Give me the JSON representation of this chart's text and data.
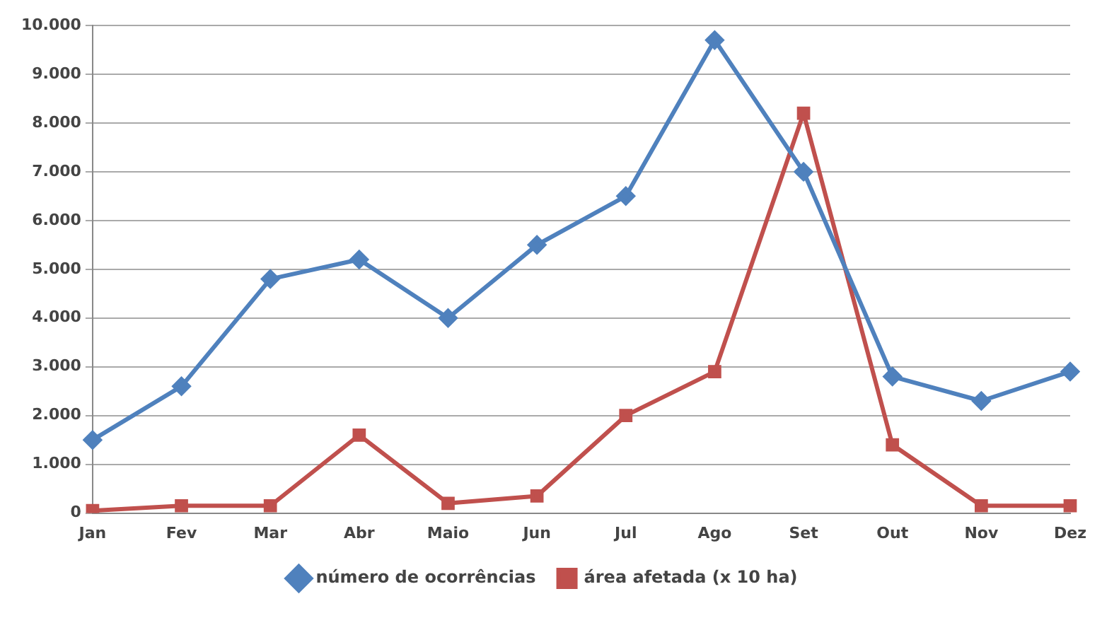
{
  "chart_data": {
    "type": "line",
    "categories": [
      "Jan",
      "Fev",
      "Mar",
      "Abr",
      "Maio",
      "Jun",
      "Jul",
      "Ago",
      "Set",
      "Out",
      "Nov",
      "Dez"
    ],
    "series": [
      {
        "name": "número de ocorrências",
        "color": "#4f81bd",
        "marker": "diamond",
        "values": [
          1500,
          2600,
          4800,
          5200,
          4000,
          5500,
          6500,
          9700,
          7000,
          2800,
          2300,
          2900
        ]
      },
      {
        "name": "área afetada (x 10 ha)",
        "color": "#c0504d",
        "marker": "square",
        "values": [
          50,
          150,
          150,
          1600,
          200,
          350,
          2000,
          2900,
          8200,
          1400,
          150,
          150
        ]
      }
    ],
    "ylim": [
      0,
      10000
    ],
    "yticks": [
      {
        "value": 0,
        "label": "0"
      },
      {
        "value": 1000,
        "label": "1.000"
      },
      {
        "value": 2000,
        "label": "2.000"
      },
      {
        "value": 3000,
        "label": "3.000"
      },
      {
        "value": 4000,
        "label": "4.000"
      },
      {
        "value": 5000,
        "label": "5.000"
      },
      {
        "value": 6000,
        "label": "6.000"
      },
      {
        "value": 7000,
        "label": "7.000"
      },
      {
        "value": 8000,
        "label": "8.000"
      },
      {
        "value": 9000,
        "label": "9.000"
      },
      {
        "value": 10000,
        "label": "10.000"
      }
    ],
    "grid": "y",
    "legend": "bottom"
  }
}
